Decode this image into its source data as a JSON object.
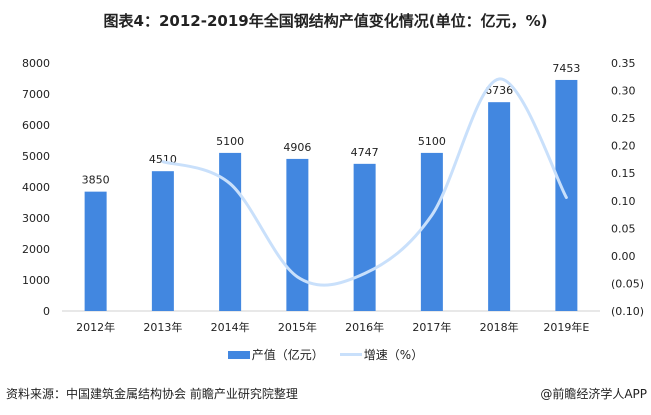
{
  "title": "图表4：2012-2019年全国钢结构产值变化情况(单位：亿元，%)",
  "chart_data": {
    "type": "bar+line",
    "title": "图表4：2012-2019年全国钢结构产值变化情况(单位：亿元，%)",
    "categories": [
      "2012年",
      "2013年",
      "2014年",
      "2015年",
      "2016年",
      "2017年",
      "2018年",
      "2019年E"
    ],
    "series": [
      {
        "name": "产值（亿元）",
        "type": "bar",
        "axis": "left",
        "color": "#4287E0",
        "values": [
          3850,
          4510,
          5100,
          4906,
          4747,
          5100,
          6736,
          7453
        ],
        "labels": [
          "3850",
          "4510",
          "5100",
          "4906",
          "4747",
          "5100",
          "6736",
          "7453"
        ]
      },
      {
        "name": "增速（%）",
        "type": "line",
        "axis": "right",
        "color": "#C9E0FB",
        "smooth": true,
        "values": [
          null,
          0.171,
          0.131,
          -0.038,
          -0.032,
          0.074,
          0.321,
          0.106
        ]
      }
    ],
    "y_left": {
      "range": [
        0,
        8000
      ],
      "ticks": [
        "0",
        "1000",
        "2000",
        "3000",
        "4000",
        "5000",
        "6000",
        "7000",
        "8000"
      ]
    },
    "y_right": {
      "range": [
        -0.1,
        0.35
      ],
      "ticks": [
        "(0.10)",
        "(0.05)",
        "0.00",
        "0.05",
        "0.10",
        "0.15",
        "0.20",
        "0.25",
        "0.30",
        "0.35"
      ]
    },
    "grid": false,
    "legend": "bottom"
  },
  "legend": {
    "bar": "产值（亿元）",
    "line": "增速（%）"
  },
  "source": "资料来源：中国建筑金属结构协会 前瞻产业研究院整理",
  "brand": "@前瞻经济学人APP"
}
